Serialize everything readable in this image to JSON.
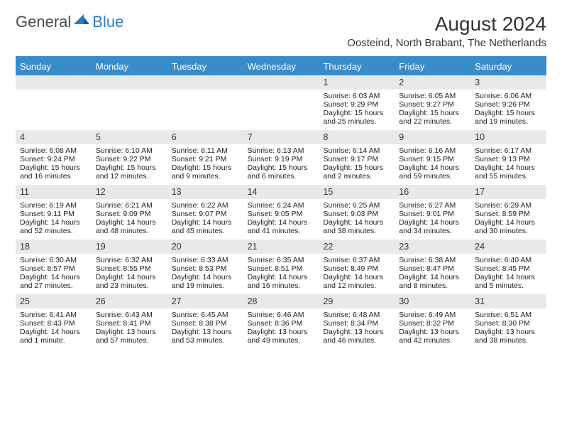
{
  "logo": {
    "part1": "General",
    "part2": "Blue"
  },
  "title": "August 2024",
  "location": "Oosteind, North Brabant, The Netherlands",
  "colors": {
    "headerBg": "#3a8bca",
    "headerText": "#ffffff",
    "dayRowBg": "#e9e9e9",
    "textColor": "#222222",
    "logoGray": "#4a4a4a",
    "logoBlue": "#2e7cc0"
  },
  "daysOfWeek": [
    "Sunday",
    "Monday",
    "Tuesday",
    "Wednesday",
    "Thursday",
    "Friday",
    "Saturday"
  ],
  "weeks": [
    {
      "days": [
        {
          "n": "",
          "sr": "",
          "ss": "",
          "dl": ""
        },
        {
          "n": "",
          "sr": "",
          "ss": "",
          "dl": ""
        },
        {
          "n": "",
          "sr": "",
          "ss": "",
          "dl": ""
        },
        {
          "n": "",
          "sr": "",
          "ss": "",
          "dl": ""
        },
        {
          "n": "1",
          "sr": "Sunrise: 6:03 AM",
          "ss": "Sunset: 9:29 PM",
          "dl": "Daylight: 15 hours and 25 minutes."
        },
        {
          "n": "2",
          "sr": "Sunrise: 6:05 AM",
          "ss": "Sunset: 9:27 PM",
          "dl": "Daylight: 15 hours and 22 minutes."
        },
        {
          "n": "3",
          "sr": "Sunrise: 6:06 AM",
          "ss": "Sunset: 9:26 PM",
          "dl": "Daylight: 15 hours and 19 minutes."
        }
      ]
    },
    {
      "days": [
        {
          "n": "4",
          "sr": "Sunrise: 6:08 AM",
          "ss": "Sunset: 9:24 PM",
          "dl": "Daylight: 15 hours and 16 minutes."
        },
        {
          "n": "5",
          "sr": "Sunrise: 6:10 AM",
          "ss": "Sunset: 9:22 PM",
          "dl": "Daylight: 15 hours and 12 minutes."
        },
        {
          "n": "6",
          "sr": "Sunrise: 6:11 AM",
          "ss": "Sunset: 9:21 PM",
          "dl": "Daylight: 15 hours and 9 minutes."
        },
        {
          "n": "7",
          "sr": "Sunrise: 6:13 AM",
          "ss": "Sunset: 9:19 PM",
          "dl": "Daylight: 15 hours and 6 minutes."
        },
        {
          "n": "8",
          "sr": "Sunrise: 6:14 AM",
          "ss": "Sunset: 9:17 PM",
          "dl": "Daylight: 15 hours and 2 minutes."
        },
        {
          "n": "9",
          "sr": "Sunrise: 6:16 AM",
          "ss": "Sunset: 9:15 PM",
          "dl": "Daylight: 14 hours and 59 minutes."
        },
        {
          "n": "10",
          "sr": "Sunrise: 6:17 AM",
          "ss": "Sunset: 9:13 PM",
          "dl": "Daylight: 14 hours and 55 minutes."
        }
      ]
    },
    {
      "days": [
        {
          "n": "11",
          "sr": "Sunrise: 6:19 AM",
          "ss": "Sunset: 9:11 PM",
          "dl": "Daylight: 14 hours and 52 minutes."
        },
        {
          "n": "12",
          "sr": "Sunrise: 6:21 AM",
          "ss": "Sunset: 9:09 PM",
          "dl": "Daylight: 14 hours and 48 minutes."
        },
        {
          "n": "13",
          "sr": "Sunrise: 6:22 AM",
          "ss": "Sunset: 9:07 PM",
          "dl": "Daylight: 14 hours and 45 minutes."
        },
        {
          "n": "14",
          "sr": "Sunrise: 6:24 AM",
          "ss": "Sunset: 9:05 PM",
          "dl": "Daylight: 14 hours and 41 minutes."
        },
        {
          "n": "15",
          "sr": "Sunrise: 6:25 AM",
          "ss": "Sunset: 9:03 PM",
          "dl": "Daylight: 14 hours and 38 minutes."
        },
        {
          "n": "16",
          "sr": "Sunrise: 6:27 AM",
          "ss": "Sunset: 9:01 PM",
          "dl": "Daylight: 14 hours and 34 minutes."
        },
        {
          "n": "17",
          "sr": "Sunrise: 6:29 AM",
          "ss": "Sunset: 8:59 PM",
          "dl": "Daylight: 14 hours and 30 minutes."
        }
      ]
    },
    {
      "days": [
        {
          "n": "18",
          "sr": "Sunrise: 6:30 AM",
          "ss": "Sunset: 8:57 PM",
          "dl": "Daylight: 14 hours and 27 minutes."
        },
        {
          "n": "19",
          "sr": "Sunrise: 6:32 AM",
          "ss": "Sunset: 8:55 PM",
          "dl": "Daylight: 14 hours and 23 minutes."
        },
        {
          "n": "20",
          "sr": "Sunrise: 6:33 AM",
          "ss": "Sunset: 8:53 PM",
          "dl": "Daylight: 14 hours and 19 minutes."
        },
        {
          "n": "21",
          "sr": "Sunrise: 6:35 AM",
          "ss": "Sunset: 8:51 PM",
          "dl": "Daylight: 14 hours and 16 minutes."
        },
        {
          "n": "22",
          "sr": "Sunrise: 6:37 AM",
          "ss": "Sunset: 8:49 PM",
          "dl": "Daylight: 14 hours and 12 minutes."
        },
        {
          "n": "23",
          "sr": "Sunrise: 6:38 AM",
          "ss": "Sunset: 8:47 PM",
          "dl": "Daylight: 14 hours and 8 minutes."
        },
        {
          "n": "24",
          "sr": "Sunrise: 6:40 AM",
          "ss": "Sunset: 8:45 PM",
          "dl": "Daylight: 14 hours and 5 minutes."
        }
      ]
    },
    {
      "days": [
        {
          "n": "25",
          "sr": "Sunrise: 6:41 AM",
          "ss": "Sunset: 8:43 PM",
          "dl": "Daylight: 14 hours and 1 minute."
        },
        {
          "n": "26",
          "sr": "Sunrise: 6:43 AM",
          "ss": "Sunset: 8:41 PM",
          "dl": "Daylight: 13 hours and 57 minutes."
        },
        {
          "n": "27",
          "sr": "Sunrise: 6:45 AM",
          "ss": "Sunset: 8:38 PM",
          "dl": "Daylight: 13 hours and 53 minutes."
        },
        {
          "n": "28",
          "sr": "Sunrise: 6:46 AM",
          "ss": "Sunset: 8:36 PM",
          "dl": "Daylight: 13 hours and 49 minutes."
        },
        {
          "n": "29",
          "sr": "Sunrise: 6:48 AM",
          "ss": "Sunset: 8:34 PM",
          "dl": "Daylight: 13 hours and 46 minutes."
        },
        {
          "n": "30",
          "sr": "Sunrise: 6:49 AM",
          "ss": "Sunset: 8:32 PM",
          "dl": "Daylight: 13 hours and 42 minutes."
        },
        {
          "n": "31",
          "sr": "Sunrise: 6:51 AM",
          "ss": "Sunset: 8:30 PM",
          "dl": "Daylight: 13 hours and 38 minutes."
        }
      ]
    }
  ]
}
